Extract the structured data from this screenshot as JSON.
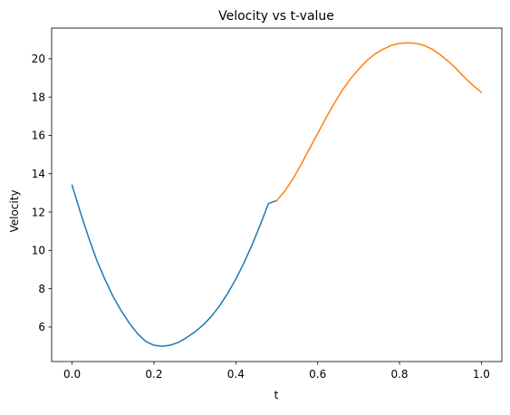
{
  "chart_data": {
    "type": "line",
    "title": "Velocity vs t-value",
    "xlabel": "t",
    "ylabel": "Velocity",
    "xlim": [
      -0.05,
      1.05
    ],
    "ylim": [
      4.2,
      21.6
    ],
    "xticks": [
      0.0,
      0.2,
      0.4,
      0.6,
      0.8,
      1.0
    ],
    "xtick_labels": [
      "0.0",
      "0.2",
      "0.4",
      "0.6",
      "0.8",
      "1.0"
    ],
    "yticks": [
      6,
      8,
      10,
      12,
      14,
      16,
      18,
      20
    ],
    "ytick_labels": [
      "6",
      "8",
      "10",
      "12",
      "14",
      "16",
      "18",
      "20"
    ],
    "grid": false,
    "series": [
      {
        "color": "#1f77b4",
        "x": [
          0.0,
          0.02,
          0.04,
          0.06,
          0.08,
          0.1,
          0.12,
          0.14,
          0.16,
          0.18,
          0.2,
          0.22,
          0.24,
          0.26,
          0.28,
          0.3,
          0.32,
          0.34,
          0.36,
          0.38,
          0.4,
          0.42,
          0.44,
          0.46,
          0.48,
          0.5
        ],
        "y": [
          13.4,
          12.0,
          10.7,
          9.5,
          8.5,
          7.6,
          6.85,
          6.2,
          5.65,
          5.25,
          5.05,
          5.0,
          5.05,
          5.2,
          5.45,
          5.75,
          6.1,
          6.55,
          7.1,
          7.75,
          8.5,
          9.35,
          10.3,
          11.35,
          12.45,
          12.6
        ]
      },
      {
        "color": "#ff7f0e",
        "x": [
          0.5,
          0.52,
          0.54,
          0.56,
          0.58,
          0.6,
          0.62,
          0.64,
          0.66,
          0.68,
          0.7,
          0.72,
          0.74,
          0.76,
          0.78,
          0.8,
          0.82,
          0.84,
          0.86,
          0.88,
          0.9,
          0.92,
          0.94,
          0.96,
          0.98,
          1.0
        ],
        "y": [
          12.6,
          13.1,
          13.75,
          14.5,
          15.3,
          16.1,
          16.9,
          17.65,
          18.35,
          18.95,
          19.45,
          19.9,
          20.25,
          20.5,
          20.7,
          20.8,
          20.83,
          20.8,
          20.7,
          20.5,
          20.2,
          19.85,
          19.45,
          19.0,
          18.6,
          18.25
        ]
      }
    ]
  }
}
